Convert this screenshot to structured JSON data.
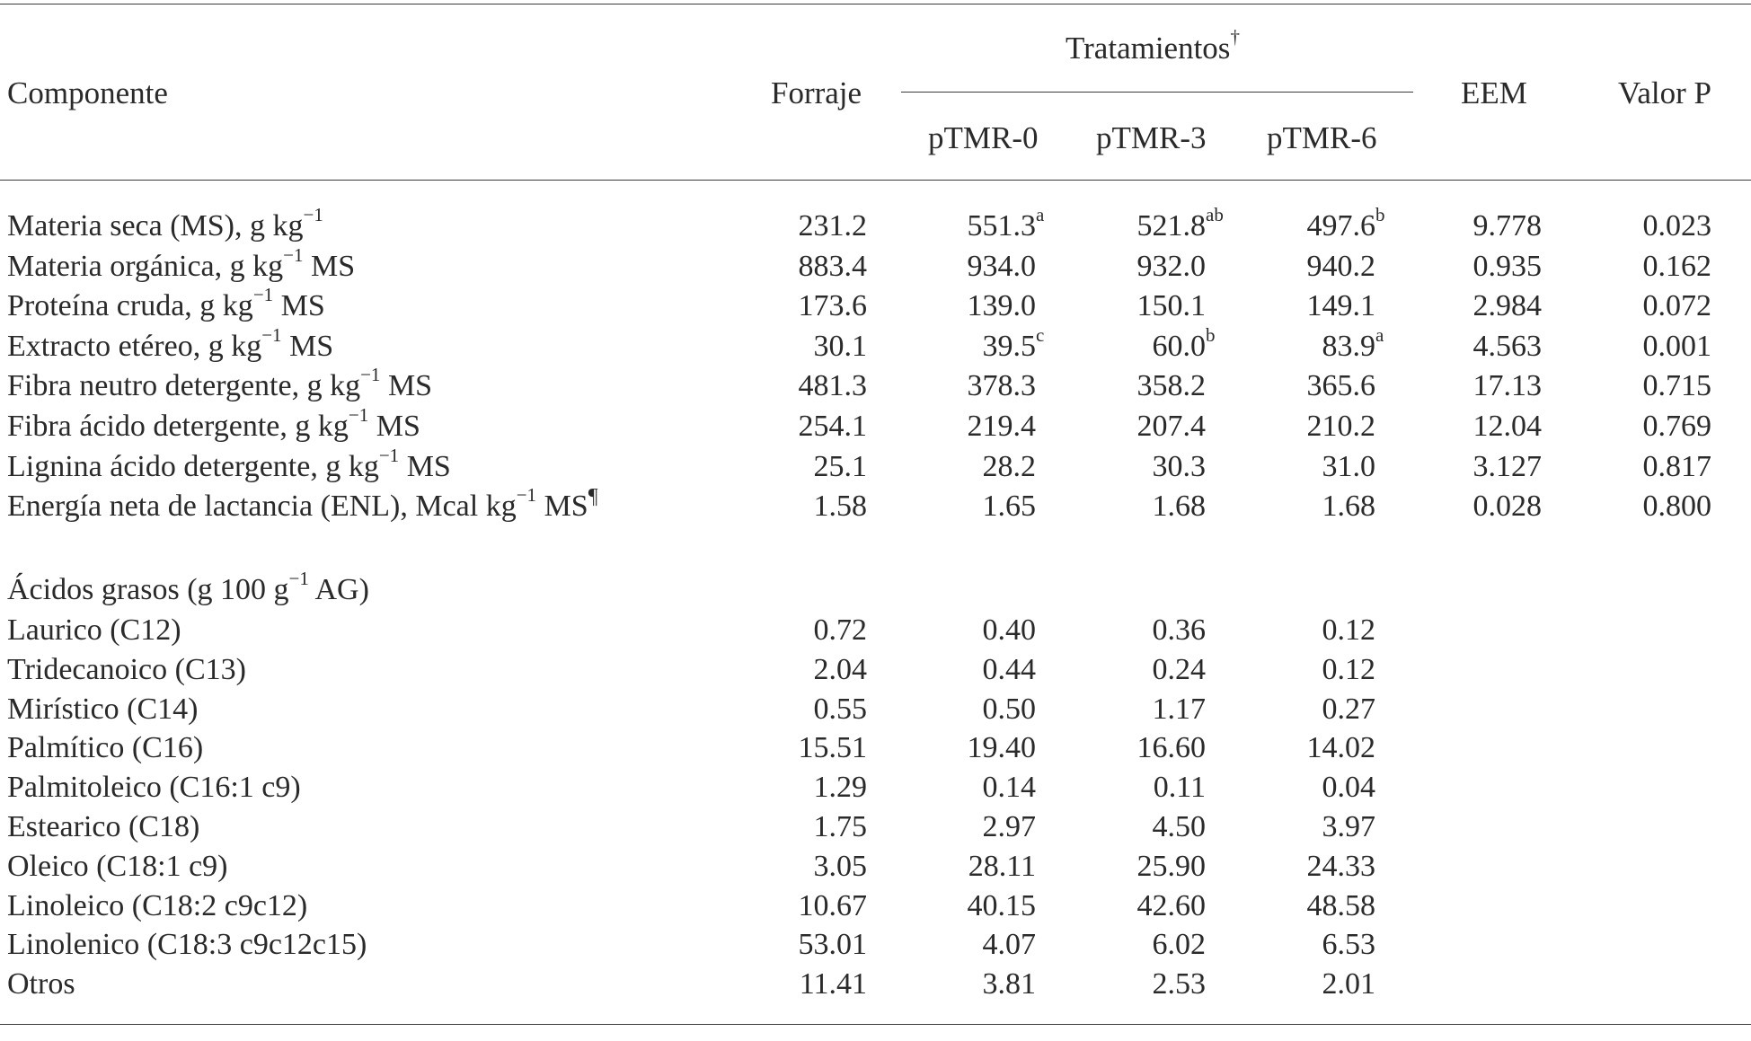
{
  "headers": {
    "componente": "Componente",
    "forraje": "Forraje",
    "tratamientos": "Tratamientos",
    "tratamientos_mark": "†",
    "ptmr0": "pTMR-0",
    "ptmr3": "pTMR-3",
    "ptmr6": "pTMR-6",
    "eem": "EEM",
    "valor_p": "Valor P"
  },
  "unit_sup": "−1",
  "composition_rows": [
    {
      "pre": "Materia seca (MS), g kg",
      "post": "",
      "note": "",
      "forraje": "231.2",
      "p0": "551.3",
      "p0_sup": "a",
      "p3": "521.8",
      "p3_sup": "ab",
      "p6": "497.6",
      "p6_sup": "b",
      "eem": "9.778",
      "p": "0.023"
    },
    {
      "pre": "Materia orgánica, g kg",
      "post": " MS",
      "note": "",
      "forraje": "883.4",
      "p0": "934.0",
      "p0_sup": "",
      "p3": "932.0",
      "p3_sup": "",
      "p6": "940.2",
      "p6_sup": "",
      "eem": "0.935",
      "p": "0.162"
    },
    {
      "pre": "Proteína cruda, g kg",
      "post": " MS",
      "note": "",
      "forraje": "173.6",
      "p0": "139.0",
      "p0_sup": "",
      "p3": "150.1",
      "p3_sup": "",
      "p6": "149.1",
      "p6_sup": "",
      "eem": "2.984",
      "p": "0.072"
    },
    {
      "pre": "Extracto etéreo, g kg",
      "post": " MS",
      "note": "",
      "forraje": "30.1",
      "p0": "39.5",
      "p0_sup": "c",
      "p3": "60.0",
      "p3_sup": "b",
      "p6": "83.9",
      "p6_sup": "a",
      "eem": "4.563",
      "p": "0.001"
    },
    {
      "pre": "Fibra neutro detergente, g kg",
      "post": " MS",
      "note": "",
      "forraje": "481.3",
      "p0": "378.3",
      "p0_sup": "",
      "p3": "358.2",
      "p3_sup": "",
      "p6": "365.6",
      "p6_sup": "",
      "eem": "17.13",
      "p": "0.715"
    },
    {
      "pre": "Fibra ácido detergente, g kg",
      "post": " MS",
      "note": "",
      "forraje": "254.1",
      "p0": "219.4",
      "p0_sup": "",
      "p3": "207.4",
      "p3_sup": "",
      "p6": "210.2",
      "p6_sup": "",
      "eem": "12.04",
      "p": "0.769"
    },
    {
      "pre": "Lignina ácido detergente, g kg",
      "post": " MS",
      "note": "",
      "forraje": "25.1",
      "p0": "28.2",
      "p0_sup": "",
      "p3": "30.3",
      "p3_sup": "",
      "p6": "31.0",
      "p6_sup": "",
      "eem": "3.127",
      "p": "0.817"
    },
    {
      "pre": "Energía neta de lactancia (ENL), Mcal kg",
      "post": " MS",
      "note": "¶",
      "forraje": "1.58",
      "p0": "1.65",
      "p0_sup": "",
      "p3": "1.68",
      "p3_sup": "",
      "p6": "1.68",
      "p6_sup": "",
      "eem": "0.028",
      "p": "0.800"
    }
  ],
  "fatty_header": {
    "pre": "Ácidos grasos (g 100 g",
    "post": " AG)"
  },
  "fatty_rows": [
    {
      "label": "Laurico (C12)",
      "forraje": "0.72",
      "p0": "0.40",
      "p3": "0.36",
      "p6": "0.12"
    },
    {
      "label": "Tridecanoico (C13)",
      "forraje": "2.04",
      "p0": "0.44",
      "p3": "0.24",
      "p6": "0.12"
    },
    {
      "label": "Mirístico (C14)",
      "forraje": "0.55",
      "p0": "0.50",
      "p3": "1.17",
      "p6": "0.27"
    },
    {
      "label": "Palmítico (C16)",
      "forraje": "15.51",
      "p0": "19.40",
      "p3": "16.60",
      "p6": "14.02"
    },
    {
      "label": "Palmitoleico (C16:1 c9)",
      "forraje": "1.29",
      "p0": "0.14",
      "p3": "0.11",
      "p6": "0.04"
    },
    {
      "label": "Estearico (C18)",
      "forraje": "1.75",
      "p0": "2.97",
      "p3": "4.50",
      "p6": "3.97"
    },
    {
      "label": "Oleico (C18:1 c9)",
      "forraje": "3.05",
      "p0": "28.11",
      "p3": "25.90",
      "p6": "24.33"
    },
    {
      "label": "Linoleico (C18:2 c9c12)",
      "forraje": "10.67",
      "p0": "40.15",
      "p3": "42.60",
      "p6": "48.58"
    },
    {
      "label": "Linolenico (C18:3 c9c12c15)",
      "forraje": "53.01",
      "p0": "4.07",
      "p3": "6.02",
      "p6": "6.53"
    },
    {
      "label": "Otros",
      "forraje": "11.41",
      "p0": "3.81",
      "p3": "2.53",
      "p6": "2.01"
    }
  ]
}
